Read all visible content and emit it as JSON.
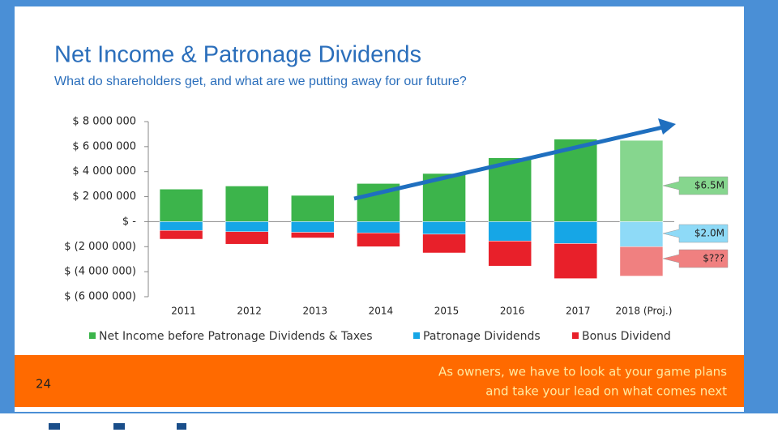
{
  "header": {
    "title": "Net Income & Patronage Dividends",
    "subtitle": "What do shareholders get, and what are we putting away for our future?"
  },
  "chart_data": {
    "type": "stacked_bar",
    "categories": [
      "2011",
      "2012",
      "2013",
      "2014",
      "2015",
      "2016",
      "2017",
      "2018 (Proj.)"
    ],
    "series": [
      {
        "name": "Net Income before Patronage Dividends & Taxes",
        "color": "#3cb44b",
        "projected_color": "#86d68e",
        "values": [
          2600000,
          2850000,
          2100000,
          3050000,
          3850000,
          5100000,
          6600000,
          6500000
        ]
      },
      {
        "name": "Patronage Dividends",
        "color": "#16a6e6",
        "projected_color": "#8edaf7",
        "values": [
          -700000,
          -800000,
          -850000,
          -900000,
          -1000000,
          -1550000,
          -1750000,
          -2000000
        ]
      },
      {
        "name": "Bonus Dividend",
        "color": "#e8202a",
        "projected_color": "#f08080",
        "values": [
          -700000,
          -1000000,
          -450000,
          -1100000,
          -1500000,
          -2000000,
          -2800000,
          -2350000
        ]
      }
    ],
    "ylim": [
      -6000000,
      8000000
    ],
    "yticks": [
      {
        "value": -6000000,
        "label": "$ (6 000 000)"
      },
      {
        "value": -4000000,
        "label": "$ (4 000 000)"
      },
      {
        "value": -2000000,
        "label": "$ (2 000 000)"
      },
      {
        "value": 0,
        "label": "$ -"
      },
      {
        "value": 2000000,
        "label": "$ 2 000 000"
      },
      {
        "value": 4000000,
        "label": "$ 4 000 000"
      },
      {
        "value": 6000000,
        "label": "$ 6 000 000"
      },
      {
        "value": 8000000,
        "label": "$ 8 000 000"
      }
    ],
    "grid": false,
    "legend": "bottom",
    "annotations": [
      "$6.5M",
      "$2.0M",
      "$???"
    ]
  },
  "footer": {
    "page": "24",
    "note": [
      "As owners, we have to look at your game plans",
      "and take your lead on what comes next"
    ]
  }
}
